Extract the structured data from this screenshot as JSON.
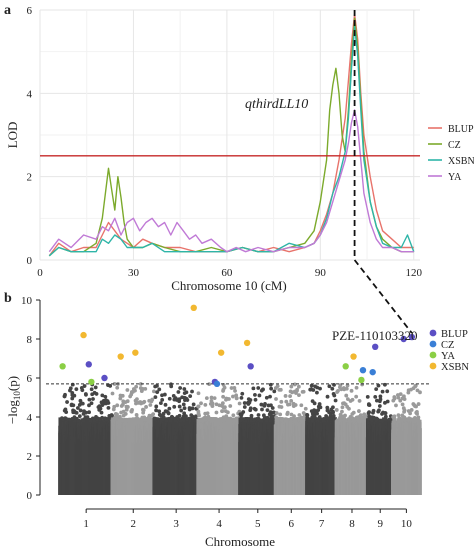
{
  "panel_a": {
    "panel_label": "a",
    "title_annotation": "qthirdLL10",
    "chart_data": {
      "type": "line",
      "xlabel": "Chromosome 10 (cM)",
      "ylabel": "LOD",
      "xlim": [
        0,
        122
      ],
      "ylim": [
        0,
        6
      ],
      "x_ticks": [
        "0",
        "30",
        "60",
        "90",
        "120"
      ],
      "y_ticks": [
        "0",
        "2",
        "4",
        "6"
      ],
      "threshold": 2.5,
      "grid": true,
      "legend_position": "right",
      "peak_x": 101,
      "series": [
        {
          "name": "BLUP",
          "color": "#e8736b",
          "x": [
            3,
            6,
            10,
            14,
            18,
            20,
            22,
            24,
            26,
            28,
            30,
            33,
            36,
            40,
            45,
            50,
            55,
            60,
            65,
            70,
            75,
            80,
            85,
            88,
            90,
            92,
            94,
            96,
            98,
            99,
            100,
            101,
            102,
            103,
            104,
            106,
            108,
            110,
            113,
            116,
            118,
            120
          ],
          "y": [
            0.1,
            0.4,
            0.2,
            0.3,
            0.3,
            0.6,
            0.9,
            0.7,
            0.5,
            0.4,
            0.3,
            0.5,
            0.4,
            0.3,
            0.3,
            0.2,
            0.2,
            0.2,
            0.3,
            0.2,
            0.3,
            0.2,
            0.3,
            0.4,
            0.7,
            1.1,
            1.6,
            2.4,
            3.4,
            4.3,
            5.2,
            5.9,
            5.3,
            4.0,
            3.0,
            2.0,
            1.2,
            0.7,
            0.5,
            0.3,
            0.3,
            0.3
          ]
        },
        {
          "name": "CZ",
          "color": "#7caa2c",
          "x": [
            3,
            6,
            10,
            14,
            18,
            20,
            21,
            22,
            23,
            24,
            25,
            26,
            27,
            28,
            30,
            33,
            36,
            40,
            45,
            50,
            55,
            60,
            65,
            70,
            75,
            80,
            85,
            88,
            90,
            92,
            93,
            94,
            95,
            96,
            97,
            98,
            99,
            100,
            101,
            102,
            103,
            104,
            106,
            108,
            110,
            113,
            116,
            118,
            120
          ],
          "y": [
            0.1,
            0.3,
            0.2,
            0.2,
            0.4,
            1.0,
            1.6,
            2.2,
            1.7,
            1.2,
            2.0,
            1.5,
            0.9,
            0.5,
            0.3,
            0.3,
            0.4,
            0.3,
            0.2,
            0.2,
            0.3,
            0.2,
            0.3,
            0.2,
            0.2,
            0.3,
            0.4,
            0.7,
            1.4,
            2.4,
            3.6,
            4.2,
            4.6,
            4.0,
            3.0,
            2.6,
            3.6,
            4.8,
            5.8,
            5.1,
            3.8,
            2.6,
            1.4,
            0.8,
            0.5,
            0.3,
            0.2,
            0.2,
            0.2
          ]
        },
        {
          "name": "XSBN",
          "color": "#2fb5a8",
          "x": [
            3,
            6,
            10,
            14,
            18,
            20,
            22,
            24,
            26,
            28,
            30,
            33,
            36,
            40,
            45,
            50,
            55,
            60,
            65,
            70,
            75,
            80,
            85,
            88,
            90,
            92,
            94,
            96,
            98,
            99,
            100,
            101,
            102,
            103,
            104,
            106,
            108,
            110,
            113,
            116,
            118,
            120
          ],
          "y": [
            0.1,
            0.3,
            0.2,
            0.2,
            0.2,
            0.5,
            0.4,
            0.6,
            0.5,
            0.3,
            0.3,
            0.3,
            0.4,
            0.2,
            0.2,
            0.2,
            0.2,
            0.2,
            0.3,
            0.2,
            0.2,
            0.4,
            0.3,
            0.4,
            0.6,
            1.0,
            1.6,
            2.0,
            2.6,
            3.4,
            4.6,
            5.6,
            4.9,
            3.6,
            2.4,
            1.4,
            0.8,
            0.4,
            0.3,
            0.3,
            0.6,
            0.2
          ]
        },
        {
          "name": "YA",
          "color": "#c07ad6",
          "x": [
            3,
            6,
            10,
            14,
            18,
            20,
            22,
            24,
            26,
            28,
            30,
            32,
            34,
            36,
            38,
            40,
            42,
            44,
            46,
            48,
            50,
            52,
            55,
            58,
            60,
            63,
            66,
            70,
            75,
            80,
            85,
            88,
            90,
            92,
            94,
            96,
            98,
            99,
            100,
            101,
            102,
            103,
            104,
            106,
            108,
            110,
            113,
            116,
            118,
            120
          ],
          "y": [
            0.2,
            0.5,
            0.3,
            0.6,
            0.5,
            0.8,
            0.7,
            1.0,
            0.6,
            0.9,
            1.0,
            0.7,
            0.9,
            1.0,
            0.8,
            0.9,
            0.6,
            0.9,
            0.7,
            0.5,
            0.6,
            0.4,
            0.5,
            0.3,
            0.2,
            0.3,
            0.2,
            0.3,
            0.2,
            0.3,
            0.3,
            0.4,
            0.6,
            0.9,
            1.4,
            1.9,
            2.4,
            2.8,
            3.3,
            3.6,
            3.2,
            2.4,
            1.6,
            0.9,
            0.5,
            0.3,
            0.3,
            0.2,
            0.2,
            0.2
          ]
        }
      ]
    }
  },
  "panel_b": {
    "panel_label": "b",
    "annotation": "PZE-110103320",
    "chart_data": {
      "type": "scatter",
      "xlabel": "Chromosome",
      "ylabel": "−log10(p)",
      "ylabel_main": "−log",
      "ylabel_sub": "10",
      "ylabel_tail": "(p)",
      "ylim": [
        0,
        10
      ],
      "y_ticks": [
        "0",
        "2",
        "4",
        "6",
        "8",
        "10"
      ],
      "categories": [
        "1",
        "2",
        "3",
        "4",
        "5",
        "6",
        "7",
        "8",
        "9",
        "10"
      ],
      "threshold": 5.7,
      "legend_position": "top-right",
      "series": [
        {
          "name": "BLUP",
          "color": "#5b4fc4",
          "points": [
            {
              "chr": 1,
              "pos": 0.55,
              "p": 6.7
            },
            {
              "chr": 1,
              "pos": 0.85,
              "p": 6.0
            },
            {
              "chr": 4,
              "pos": 0.4,
              "p": 5.8
            },
            {
              "chr": 5,
              "pos": 0.3,
              "p": 6.6
            },
            {
              "chr": 9,
              "pos": 0.3,
              "p": 7.6
            },
            {
              "chr": 10,
              "pos": 0.4,
              "p": 8.0
            },
            {
              "chr": 10,
              "pos": 0.7,
              "p": 8.1
            }
          ]
        },
        {
          "name": "CZ",
          "color": "#3a7fd6",
          "points": [
            {
              "chr": 4,
              "pos": 0.45,
              "p": 5.7
            },
            {
              "chr": 8,
              "pos": 0.85,
              "p": 6.4
            },
            {
              "chr": 9,
              "pos": 0.2,
              "p": 6.3
            }
          ]
        },
        {
          "name": "YA",
          "color": "#8bcf45",
          "points": [
            {
              "chr": 1,
              "pos": 0.05,
              "p": 6.6
            },
            {
              "chr": 1,
              "pos": 0.6,
              "p": 5.8
            },
            {
              "chr": 8,
              "pos": 0.3,
              "p": 6.6
            },
            {
              "chr": 8,
              "pos": 0.8,
              "p": 5.9
            }
          ]
        },
        {
          "name": "XSBN",
          "color": "#f2b830",
          "points": [
            {
              "chr": 1,
              "pos": 0.45,
              "p": 8.2
            },
            {
              "chr": 2,
              "pos": 0.2,
              "p": 7.1
            },
            {
              "chr": 2,
              "pos": 0.55,
              "p": 7.3
            },
            {
              "chr": 3,
              "pos": 0.9,
              "p": 9.6
            },
            {
              "chr": 4,
              "pos": 0.55,
              "p": 7.3
            },
            {
              "chr": 5,
              "pos": 0.2,
              "p": 7.8
            },
            {
              "chr": 8,
              "pos": 0.55,
              "p": 7.1
            }
          ]
        }
      ]
    }
  }
}
